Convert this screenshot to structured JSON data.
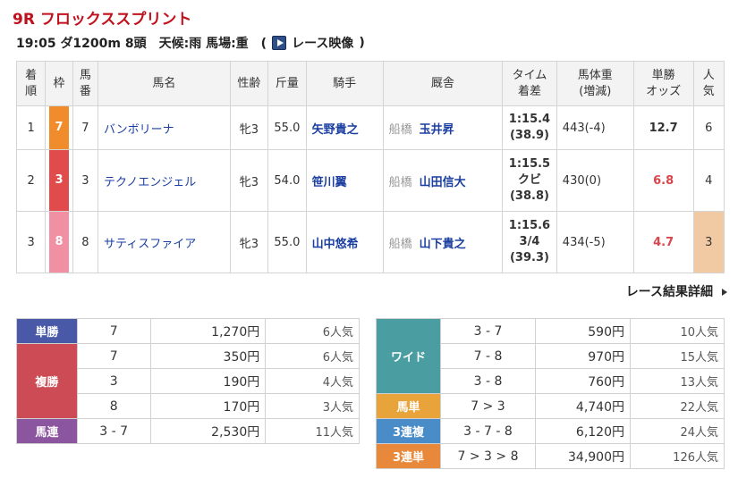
{
  "race": {
    "title": "9R フロックススプリント",
    "info": "19:05 ダ1200m 8頭　天候:雨 馬場:重　(",
    "video_label": "レース映像",
    "info_close": ")"
  },
  "results": {
    "headers": [
      "着順",
      "枠",
      "馬番",
      "馬名",
      "性齢",
      "斤量",
      "騎手",
      "厩舎",
      "タイム着差",
      "馬体重(増減)",
      "単勝オッズ",
      "人気"
    ],
    "header_lines": {
      "rank": [
        "着",
        "順"
      ],
      "waku": [
        "枠"
      ],
      "num": [
        "馬",
        "番"
      ],
      "name": [
        "馬名"
      ],
      "sexage": [
        "性齢"
      ],
      "weight": [
        "斤量"
      ],
      "jockey": [
        "騎手"
      ],
      "stable": [
        "厩舎"
      ],
      "time": [
        "タイム",
        "着差"
      ],
      "body": [
        "馬体重",
        "(増減)"
      ],
      "odds": [
        "単勝",
        "オッズ"
      ],
      "pop": [
        "人",
        "気"
      ]
    },
    "rows": [
      {
        "rank": "1",
        "waku": "7",
        "waku_color": "#f08c2c",
        "num": "7",
        "name": "バンボリーナ",
        "sexage": "牝3",
        "weight": "55.0",
        "jockey": "矢野貴之",
        "region": "船橋",
        "trainer": "玉井昇",
        "time": "1:15.4",
        "margin": "",
        "last3f": "(38.9)",
        "body": "443(-4)",
        "odds": "12.7",
        "pop": "6"
      },
      {
        "rank": "2",
        "waku": "3",
        "waku_color": "#e24b4b",
        "num": "3",
        "name": "テクノエンジェル",
        "sexage": "牝3",
        "weight": "54.0",
        "jockey": "笹川翼",
        "region": "船橋",
        "trainer": "山田信大",
        "time": "1:15.5",
        "margin": "クビ",
        "last3f": "(38.8)",
        "body": "430(0)",
        "odds": "6.8",
        "pop": "4"
      },
      {
        "rank": "3",
        "waku": "8",
        "waku_color": "#f18fa3",
        "num": "8",
        "name": "サティスファイア",
        "sexage": "牝3",
        "weight": "55.0",
        "jockey": "山中悠希",
        "region": "船橋",
        "trainer": "山下貴之",
        "time": "1:15.6",
        "margin": "3/4",
        "last3f": "(39.3)",
        "body": "434(-5)",
        "odds": "4.7",
        "pop": "3"
      }
    ],
    "detail_link": "レース結果詳細"
  },
  "payouts": {
    "left": {
      "tansho": {
        "label": "単勝",
        "color": "#4a58a8",
        "rows": [
          {
            "combo": "7",
            "amount": "1,270円",
            "pop": "6人気"
          }
        ]
      },
      "fukusho": {
        "label": "複勝",
        "color": "#cc4b55",
        "rows": [
          {
            "combo": "7",
            "amount": "350円",
            "pop": "6人気"
          },
          {
            "combo": "3",
            "amount": "190円",
            "pop": "4人気"
          },
          {
            "combo": "8",
            "amount": "170円",
            "pop": "3人気"
          }
        ]
      },
      "umaren": {
        "label": "馬連",
        "color": "#8b55a0",
        "rows": [
          {
            "combo": "3 - 7",
            "amount": "2,530円",
            "pop": "11人気"
          }
        ]
      }
    },
    "right": {
      "wide": {
        "label": "ワイド",
        "color": "#4a9da0",
        "rows": [
          {
            "combo": "3 - 7",
            "amount": "590円",
            "pop": "10人気"
          },
          {
            "combo": "7 - 8",
            "amount": "970円",
            "pop": "15人気"
          },
          {
            "combo": "3 - 8",
            "amount": "760円",
            "pop": "13人気"
          }
        ]
      },
      "umatan": {
        "label": "馬単",
        "color": "#e8a33a",
        "rows": [
          {
            "combo": "7 > 3",
            "amount": "4,740円",
            "pop": "22人気"
          }
        ]
      },
      "sanrenpuku": {
        "label": "3連複",
        "color": "#4a8cc8",
        "rows": [
          {
            "combo": "3 - 7 - 8",
            "amount": "6,120円",
            "pop": "24人気"
          }
        ]
      },
      "sanrentan": {
        "label": "3連単",
        "color": "#e8883a",
        "rows": [
          {
            "combo": "7 > 3 > 8",
            "amount": "34,900円",
            "pop": "126人気"
          }
        ]
      }
    }
  }
}
